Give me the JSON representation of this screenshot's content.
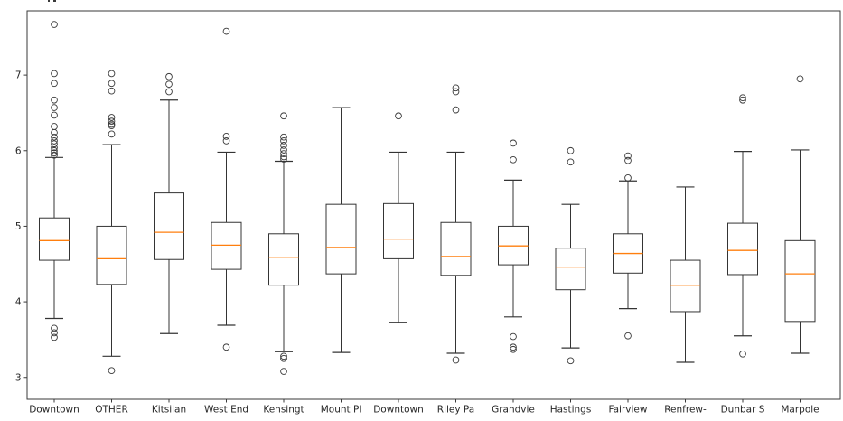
{
  "chart_data": {
    "type": "box",
    "title": "",
    "xlabel": "",
    "ylabel": "",
    "yticks": [
      3,
      4,
      5,
      6,
      7
    ],
    "ylim": [
      2.71,
      7.85
    ],
    "grid": false,
    "legend": "none",
    "background": "#ffffff",
    "colors": {
      "box": "#343434",
      "whisker": "#343434",
      "cap": "#343434",
      "median": "#ff7f0e",
      "flier_edge": "#3a3a3a",
      "frame": "#3a3a3a",
      "tick_label": "#262626"
    },
    "categories": [
      "Downtown",
      "OTHER",
      "Kitsilan",
      "West End",
      "Kensingt",
      "Mount Pl",
      "Downtown",
      "Riley Pa",
      "Grandvie",
      "Hastings",
      "Fairview",
      "Renfrew-",
      "Dunbar S",
      "Marpole"
    ],
    "series": [
      {
        "label": "Downtown",
        "whislo": 3.78,
        "q1": 4.55,
        "med": 4.81,
        "q3": 5.11,
        "whishi": 5.91,
        "fliers_high": [
          7.67,
          7.02,
          6.89,
          6.67,
          6.57,
          6.47,
          6.32,
          6.24,
          6.18,
          6.13,
          6.09,
          6.04,
          6.0,
          5.97,
          5.94
        ],
        "fliers_low": [
          3.65,
          3.59,
          3.53
        ]
      },
      {
        "label": "OTHER",
        "whislo": 3.28,
        "q1": 4.23,
        "med": 4.57,
        "q3": 5.0,
        "whishi": 6.08,
        "fliers_high": [
          7.02,
          6.89,
          6.79,
          6.44,
          6.39,
          6.35,
          6.33,
          6.22
        ],
        "fliers_low": [
          3.09
        ]
      },
      {
        "label": "Kitsilan",
        "whislo": 3.58,
        "q1": 4.56,
        "med": 4.92,
        "q3": 5.44,
        "whishi": 6.67,
        "fliers_high": [
          6.98,
          6.88,
          6.78
        ],
        "fliers_low": []
      },
      {
        "label": "West End",
        "whislo": 3.69,
        "q1": 4.43,
        "med": 4.75,
        "q3": 5.05,
        "whishi": 5.98,
        "fliers_high": [
          7.58,
          6.19,
          6.13
        ],
        "fliers_low": [
          3.4
        ]
      },
      {
        "label": "Kensingt",
        "whislo": 3.34,
        "q1": 4.22,
        "med": 4.59,
        "q3": 4.9,
        "whishi": 5.86,
        "fliers_high": [
          6.46,
          6.18,
          6.13,
          6.07,
          6.01,
          5.96,
          5.92,
          5.89
        ],
        "fliers_low": [
          3.28,
          3.25,
          3.08
        ]
      },
      {
        "label": "Mount Pl",
        "whislo": 3.33,
        "q1": 4.37,
        "med": 4.72,
        "q3": 5.29,
        "whishi": 6.57,
        "fliers_high": [],
        "fliers_low": []
      },
      {
        "label": "Downtown",
        "whislo": 3.73,
        "q1": 4.57,
        "med": 4.83,
        "q3": 5.3,
        "whishi": 5.98,
        "fliers_high": [
          6.46
        ],
        "fliers_low": []
      },
      {
        "label": "Riley Pa",
        "whislo": 3.32,
        "q1": 4.35,
        "med": 4.6,
        "q3": 5.05,
        "whishi": 5.98,
        "fliers_high": [
          6.83,
          6.78,
          6.54
        ],
        "fliers_low": [
          3.23
        ]
      },
      {
        "label": "Grandvie",
        "whislo": 3.8,
        "q1": 4.49,
        "med": 4.74,
        "q3": 5.0,
        "whishi": 5.61,
        "fliers_high": [
          6.1,
          5.88
        ],
        "fliers_low": [
          3.54,
          3.4,
          3.37
        ]
      },
      {
        "label": "Hastings",
        "whislo": 3.39,
        "q1": 4.16,
        "med": 4.46,
        "q3": 4.71,
        "whishi": 5.29,
        "fliers_high": [
          6.0,
          5.85
        ],
        "fliers_low": [
          3.22
        ]
      },
      {
        "label": "Fairview",
        "whislo": 3.91,
        "q1": 4.38,
        "med": 4.64,
        "q3": 4.9,
        "whishi": 5.6,
        "fliers_high": [
          5.93,
          5.87,
          5.64
        ],
        "fliers_low": [
          3.55
        ]
      },
      {
        "label": "Renfrew-",
        "whislo": 3.2,
        "q1": 3.87,
        "med": 4.22,
        "q3": 4.55,
        "whishi": 5.52,
        "fliers_high": [],
        "fliers_low": []
      },
      {
        "label": "Dunbar S",
        "whislo": 3.55,
        "q1": 4.36,
        "med": 4.68,
        "q3": 5.04,
        "whishi": 5.99,
        "fliers_high": [
          6.7,
          6.67
        ],
        "fliers_low": [
          3.31
        ]
      },
      {
        "label": "Marpole",
        "whislo": 3.32,
        "q1": 3.74,
        "med": 4.37,
        "q3": 4.81,
        "whishi": 6.01,
        "fliers_high": [
          6.95
        ],
        "fliers_low": []
      }
    ]
  }
}
